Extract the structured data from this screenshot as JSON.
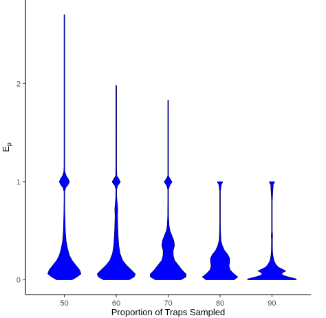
{
  "chart_data": {
    "type": "violin",
    "xlabel": "Proportion of Traps Sampled",
    "ylabel_main": "E",
    "ylabel_sub": "p",
    "categories": [
      "50",
      "60",
      "70",
      "80",
      "90"
    ],
    "ylim": [
      -0.15,
      2.85
    ],
    "yticks": [
      0,
      1,
      2
    ],
    "grid": false,
    "legend": "none",
    "fill_color": "#0000ff",
    "line_color": "#000000",
    "series": [
      {
        "category": "50",
        "max": 2.7,
        "profile": [
          [
            0.0,
            0.06
          ],
          [
            0.03,
            0.1
          ],
          [
            0.06,
            0.13
          ],
          [
            0.1,
            0.12
          ],
          [
            0.15,
            0.09
          ],
          [
            0.2,
            0.06
          ],
          [
            0.25,
            0.04
          ],
          [
            0.32,
            0.025
          ],
          [
            0.4,
            0.014
          ],
          [
            0.5,
            0.008
          ],
          [
            0.6,
            0.006
          ],
          [
            0.7,
            0.004
          ],
          [
            0.8,
            0.003
          ],
          [
            0.9,
            0.003
          ],
          [
            0.94,
            0.012
          ],
          [
            0.97,
            0.03
          ],
          [
            1.0,
            0.04
          ],
          [
            1.03,
            0.03
          ],
          [
            1.06,
            0.015
          ],
          [
            1.1,
            0.005
          ],
          [
            1.15,
            0.003
          ],
          [
            1.3,
            0.002
          ],
          [
            1.6,
            0.0015
          ],
          [
            2.0,
            0.001
          ],
          [
            2.4,
            0.001
          ],
          [
            2.7,
            0.001
          ]
        ]
      },
      {
        "category": "60",
        "max": 1.98,
        "profile": [
          [
            0.0,
            0.1
          ],
          [
            0.03,
            0.14
          ],
          [
            0.06,
            0.15
          ],
          [
            0.1,
            0.12
          ],
          [
            0.15,
            0.08
          ],
          [
            0.2,
            0.05
          ],
          [
            0.27,
            0.03
          ],
          [
            0.35,
            0.02
          ],
          [
            0.45,
            0.015
          ],
          [
            0.55,
            0.012
          ],
          [
            0.65,
            0.01
          ],
          [
            0.72,
            0.012
          ],
          [
            0.78,
            0.008
          ],
          [
            0.85,
            0.004
          ],
          [
            0.92,
            0.003
          ],
          [
            0.96,
            0.012
          ],
          [
            0.99,
            0.03
          ],
          [
            1.0,
            0.032
          ],
          [
            1.03,
            0.02
          ],
          [
            1.06,
            0.005
          ],
          [
            1.15,
            0.002
          ],
          [
            1.5,
            0.0015
          ],
          [
            1.98,
            0.001
          ]
        ]
      },
      {
        "category": "70",
        "max": 1.83,
        "profile": [
          [
            0.0,
            0.1
          ],
          [
            0.03,
            0.14
          ],
          [
            0.06,
            0.14
          ],
          [
            0.1,
            0.11
          ],
          [
            0.15,
            0.08
          ],
          [
            0.2,
            0.05
          ],
          [
            0.25,
            0.04
          ],
          [
            0.3,
            0.04
          ],
          [
            0.35,
            0.05
          ],
          [
            0.4,
            0.045
          ],
          [
            0.45,
            0.03
          ],
          [
            0.5,
            0.015
          ],
          [
            0.55,
            0.008
          ],
          [
            0.65,
            0.004
          ],
          [
            0.8,
            0.003
          ],
          [
            0.92,
            0.003
          ],
          [
            0.96,
            0.012
          ],
          [
            0.99,
            0.028
          ],
          [
            1.0,
            0.03
          ],
          [
            1.03,
            0.015
          ],
          [
            1.06,
            0.003
          ],
          [
            1.4,
            0.0015
          ],
          [
            1.83,
            0.001
          ]
        ]
      },
      {
        "category": "80",
        "max": 1.0,
        "profile": [
          [
            0.0,
            0.11
          ],
          [
            0.03,
            0.14
          ],
          [
            0.06,
            0.11
          ],
          [
            0.1,
            0.08
          ],
          [
            0.14,
            0.07
          ],
          [
            0.18,
            0.075
          ],
          [
            0.22,
            0.075
          ],
          [
            0.26,
            0.06
          ],
          [
            0.3,
            0.035
          ],
          [
            0.35,
            0.018
          ],
          [
            0.4,
            0.008
          ],
          [
            0.5,
            0.004
          ],
          [
            0.6,
            0.003
          ],
          [
            0.7,
            0.003
          ],
          [
            0.8,
            0.002
          ],
          [
            0.9,
            0.002
          ],
          [
            0.97,
            0.01
          ],
          [
            0.99,
            0.02
          ],
          [
            1.0,
            0.02
          ]
        ]
      },
      {
        "category": "90",
        "max": 1.0,
        "profile": [
          [
            0.0,
            0.19
          ],
          [
            0.01,
            0.19
          ],
          [
            0.03,
            0.13
          ],
          [
            0.05,
            0.08
          ],
          [
            0.07,
            0.08
          ],
          [
            0.09,
            0.11
          ],
          [
            0.11,
            0.08
          ],
          [
            0.13,
            0.05
          ],
          [
            0.16,
            0.03
          ],
          [
            0.2,
            0.015
          ],
          [
            0.25,
            0.008
          ],
          [
            0.3,
            0.005
          ],
          [
            0.4,
            0.004
          ],
          [
            0.45,
            0.006
          ],
          [
            0.5,
            0.003
          ],
          [
            0.6,
            0.002
          ],
          [
            0.8,
            0.002
          ],
          [
            0.97,
            0.01
          ],
          [
            0.99,
            0.02
          ],
          [
            1.0,
            0.02
          ]
        ]
      }
    ]
  }
}
